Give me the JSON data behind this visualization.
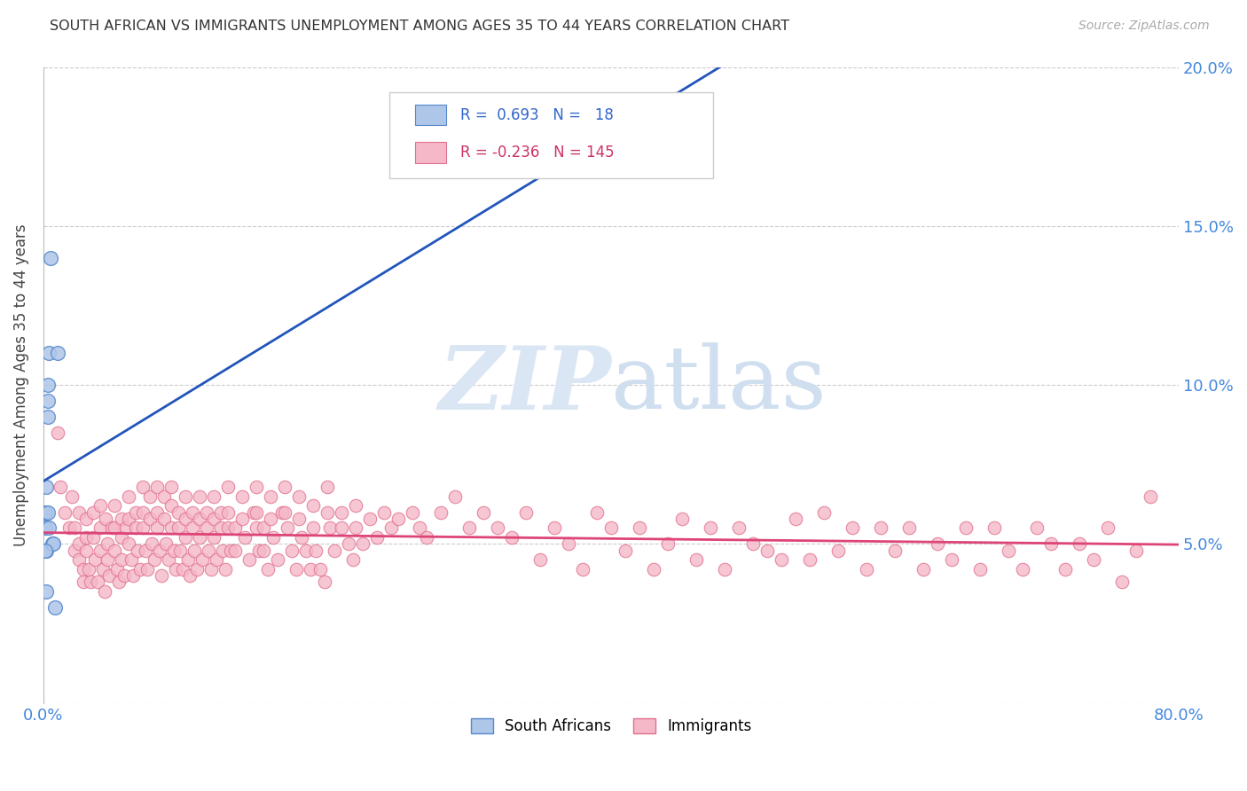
{
  "title": "SOUTH AFRICAN VS IMMIGRANTS UNEMPLOYMENT AMONG AGES 35 TO 44 YEARS CORRELATION CHART",
  "source": "Source: ZipAtlas.com",
  "ylabel": "Unemployment Among Ages 35 to 44 years",
  "xlim": [
    0,
    0.8
  ],
  "ylim": [
    0,
    0.2
  ],
  "xticks": [
    0.0,
    0.1,
    0.2,
    0.3,
    0.4,
    0.5,
    0.6,
    0.7,
    0.8
  ],
  "yticks": [
    0.0,
    0.05,
    0.1,
    0.15,
    0.2
  ],
  "sa_color": "#aec6e8",
  "sa_edge_color": "#5588cc",
  "imm_color": "#f5b8c8",
  "imm_edge_color": "#e07090",
  "sa_line_color": "#2255bb",
  "imm_line_color": "#dd4477",
  "watermark_zip": "ZIP",
  "watermark_atlas": "atlas",
  "watermark_color": "#dce8f5",
  "grid_color": "#cccccc",
  "background_color": "#ffffff",
  "sa_points": [
    [
      0.001,
      0.06
    ],
    [
      0.001,
      0.055
    ],
    [
      0.002,
      0.068
    ],
    [
      0.002,
      0.048
    ],
    [
      0.003,
      0.095
    ],
    [
      0.003,
      0.1
    ],
    [
      0.003,
      0.09
    ],
    [
      0.004,
      0.055
    ],
    [
      0.004,
      0.11
    ],
    [
      0.005,
      0.14
    ],
    [
      0.006,
      0.05
    ],
    [
      0.007,
      0.05
    ],
    [
      0.008,
      0.03
    ],
    [
      0.01,
      0.11
    ],
    [
      0.002,
      0.035
    ],
    [
      0.001,
      0.048
    ],
    [
      0.003,
      0.06
    ],
    [
      0.38,
      0.173
    ]
  ],
  "imm_points": [
    [
      0.01,
      0.085
    ],
    [
      0.012,
      0.068
    ],
    [
      0.015,
      0.06
    ],
    [
      0.018,
      0.055
    ],
    [
      0.02,
      0.065
    ],
    [
      0.022,
      0.055
    ],
    [
      0.022,
      0.048
    ],
    [
      0.025,
      0.06
    ],
    [
      0.025,
      0.05
    ],
    [
      0.025,
      0.045
    ],
    [
      0.028,
      0.042
    ],
    [
      0.028,
      0.038
    ],
    [
      0.03,
      0.058
    ],
    [
      0.03,
      0.052
    ],
    [
      0.03,
      0.048
    ],
    [
      0.032,
      0.042
    ],
    [
      0.033,
      0.038
    ],
    [
      0.035,
      0.06
    ],
    [
      0.035,
      0.052
    ],
    [
      0.036,
      0.045
    ],
    [
      0.038,
      0.038
    ],
    [
      0.04,
      0.062
    ],
    [
      0.04,
      0.055
    ],
    [
      0.04,
      0.048
    ],
    [
      0.042,
      0.042
    ],
    [
      0.043,
      0.035
    ],
    [
      0.044,
      0.058
    ],
    [
      0.045,
      0.05
    ],
    [
      0.045,
      0.045
    ],
    [
      0.046,
      0.04
    ],
    [
      0.048,
      0.055
    ],
    [
      0.05,
      0.062
    ],
    [
      0.05,
      0.055
    ],
    [
      0.05,
      0.048
    ],
    [
      0.052,
      0.042
    ],
    [
      0.053,
      0.038
    ],
    [
      0.055,
      0.058
    ],
    [
      0.055,
      0.052
    ],
    [
      0.055,
      0.045
    ],
    [
      0.057,
      0.04
    ],
    [
      0.058,
      0.055
    ],
    [
      0.06,
      0.065
    ],
    [
      0.06,
      0.058
    ],
    [
      0.06,
      0.05
    ],
    [
      0.062,
      0.045
    ],
    [
      0.063,
      0.04
    ],
    [
      0.065,
      0.06
    ],
    [
      0.065,
      0.055
    ],
    [
      0.066,
      0.048
    ],
    [
      0.068,
      0.042
    ],
    [
      0.07,
      0.068
    ],
    [
      0.07,
      0.06
    ],
    [
      0.07,
      0.055
    ],
    [
      0.072,
      0.048
    ],
    [
      0.073,
      0.042
    ],
    [
      0.075,
      0.065
    ],
    [
      0.075,
      0.058
    ],
    [
      0.076,
      0.05
    ],
    [
      0.078,
      0.045
    ],
    [
      0.08,
      0.068
    ],
    [
      0.08,
      0.06
    ],
    [
      0.08,
      0.055
    ],
    [
      0.082,
      0.048
    ],
    [
      0.083,
      0.04
    ],
    [
      0.085,
      0.065
    ],
    [
      0.085,
      0.058
    ],
    [
      0.086,
      0.05
    ],
    [
      0.088,
      0.045
    ],
    [
      0.09,
      0.068
    ],
    [
      0.09,
      0.062
    ],
    [
      0.09,
      0.055
    ],
    [
      0.092,
      0.048
    ],
    [
      0.093,
      0.042
    ],
    [
      0.095,
      0.06
    ],
    [
      0.095,
      0.055
    ],
    [
      0.096,
      0.048
    ],
    [
      0.098,
      0.042
    ],
    [
      0.1,
      0.065
    ],
    [
      0.1,
      0.058
    ],
    [
      0.1,
      0.052
    ],
    [
      0.102,
      0.045
    ],
    [
      0.103,
      0.04
    ],
    [
      0.105,
      0.06
    ],
    [
      0.105,
      0.055
    ],
    [
      0.106,
      0.048
    ],
    [
      0.108,
      0.042
    ],
    [
      0.11,
      0.065
    ],
    [
      0.11,
      0.058
    ],
    [
      0.11,
      0.052
    ],
    [
      0.112,
      0.045
    ],
    [
      0.115,
      0.06
    ],
    [
      0.115,
      0.055
    ],
    [
      0.116,
      0.048
    ],
    [
      0.118,
      0.042
    ],
    [
      0.12,
      0.065
    ],
    [
      0.12,
      0.058
    ],
    [
      0.12,
      0.052
    ],
    [
      0.122,
      0.045
    ],
    [
      0.125,
      0.06
    ],
    [
      0.125,
      0.055
    ],
    [
      0.126,
      0.048
    ],
    [
      0.128,
      0.042
    ],
    [
      0.13,
      0.068
    ],
    [
      0.13,
      0.06
    ],
    [
      0.13,
      0.055
    ],
    [
      0.132,
      0.048
    ],
    [
      0.135,
      0.055
    ],
    [
      0.135,
      0.048
    ],
    [
      0.14,
      0.065
    ],
    [
      0.14,
      0.058
    ],
    [
      0.142,
      0.052
    ],
    [
      0.145,
      0.045
    ],
    [
      0.148,
      0.06
    ],
    [
      0.15,
      0.068
    ],
    [
      0.15,
      0.06
    ],
    [
      0.15,
      0.055
    ],
    [
      0.152,
      0.048
    ],
    [
      0.155,
      0.055
    ],
    [
      0.155,
      0.048
    ],
    [
      0.158,
      0.042
    ],
    [
      0.16,
      0.065
    ],
    [
      0.16,
      0.058
    ],
    [
      0.162,
      0.052
    ],
    [
      0.165,
      0.045
    ],
    [
      0.168,
      0.06
    ],
    [
      0.17,
      0.068
    ],
    [
      0.17,
      0.06
    ],
    [
      0.172,
      0.055
    ],
    [
      0.175,
      0.048
    ],
    [
      0.178,
      0.042
    ],
    [
      0.18,
      0.065
    ],
    [
      0.18,
      0.058
    ],
    [
      0.182,
      0.052
    ],
    [
      0.185,
      0.048
    ],
    [
      0.188,
      0.042
    ],
    [
      0.19,
      0.062
    ],
    [
      0.19,
      0.055
    ],
    [
      0.192,
      0.048
    ],
    [
      0.195,
      0.042
    ],
    [
      0.198,
      0.038
    ],
    [
      0.2,
      0.068
    ],
    [
      0.2,
      0.06
    ],
    [
      0.202,
      0.055
    ],
    [
      0.205,
      0.048
    ],
    [
      0.21,
      0.06
    ],
    [
      0.21,
      0.055
    ],
    [
      0.215,
      0.05
    ],
    [
      0.218,
      0.045
    ],
    [
      0.22,
      0.062
    ],
    [
      0.22,
      0.055
    ],
    [
      0.225,
      0.05
    ],
    [
      0.23,
      0.058
    ],
    [
      0.235,
      0.052
    ],
    [
      0.24,
      0.06
    ],
    [
      0.245,
      0.055
    ],
    [
      0.25,
      0.058
    ],
    [
      0.26,
      0.06
    ],
    [
      0.265,
      0.055
    ],
    [
      0.27,
      0.052
    ],
    [
      0.28,
      0.06
    ],
    [
      0.29,
      0.065
    ],
    [
      0.3,
      0.055
    ],
    [
      0.31,
      0.06
    ],
    [
      0.32,
      0.055
    ],
    [
      0.33,
      0.052
    ],
    [
      0.34,
      0.06
    ],
    [
      0.35,
      0.045
    ],
    [
      0.36,
      0.055
    ],
    [
      0.37,
      0.05
    ],
    [
      0.38,
      0.042
    ],
    [
      0.39,
      0.06
    ],
    [
      0.4,
      0.055
    ],
    [
      0.41,
      0.048
    ],
    [
      0.42,
      0.055
    ],
    [
      0.43,
      0.042
    ],
    [
      0.44,
      0.05
    ],
    [
      0.45,
      0.058
    ],
    [
      0.46,
      0.045
    ],
    [
      0.47,
      0.055
    ],
    [
      0.48,
      0.042
    ],
    [
      0.49,
      0.055
    ],
    [
      0.5,
      0.05
    ],
    [
      0.51,
      0.048
    ],
    [
      0.52,
      0.045
    ],
    [
      0.53,
      0.058
    ],
    [
      0.54,
      0.045
    ],
    [
      0.55,
      0.06
    ],
    [
      0.56,
      0.048
    ],
    [
      0.57,
      0.055
    ],
    [
      0.58,
      0.042
    ],
    [
      0.59,
      0.055
    ],
    [
      0.6,
      0.048
    ],
    [
      0.61,
      0.055
    ],
    [
      0.62,
      0.042
    ],
    [
      0.63,
      0.05
    ],
    [
      0.64,
      0.045
    ],
    [
      0.65,
      0.055
    ],
    [
      0.66,
      0.042
    ],
    [
      0.67,
      0.055
    ],
    [
      0.68,
      0.048
    ],
    [
      0.69,
      0.042
    ],
    [
      0.7,
      0.055
    ],
    [
      0.71,
      0.05
    ],
    [
      0.72,
      0.042
    ],
    [
      0.73,
      0.05
    ],
    [
      0.74,
      0.045
    ],
    [
      0.75,
      0.055
    ],
    [
      0.76,
      0.038
    ],
    [
      0.77,
      0.048
    ],
    [
      0.78,
      0.065
    ]
  ]
}
